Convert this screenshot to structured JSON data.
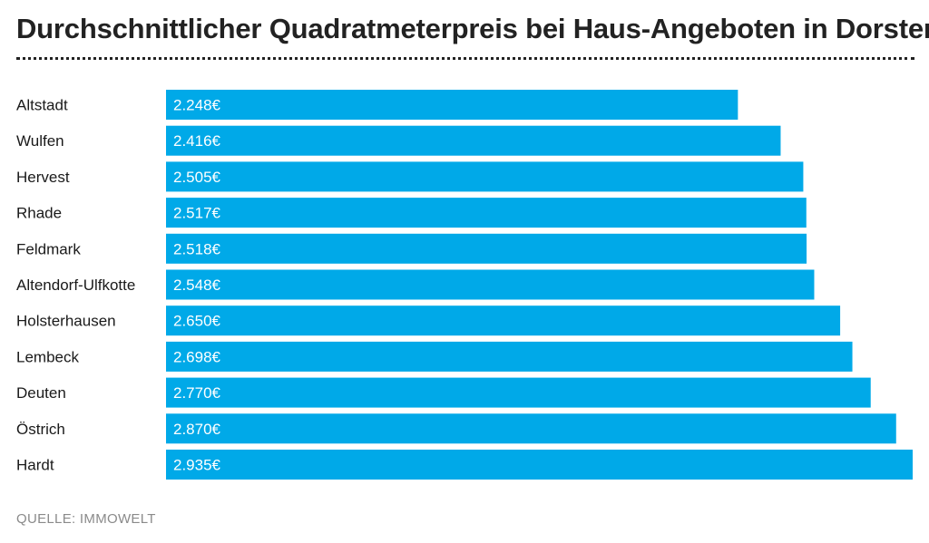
{
  "chart_data": {
    "type": "bar",
    "orientation": "horizontal",
    "title": "Durchschnittlicher Quadratmeterpreis bei Haus-Angeboten in Dorsten",
    "categories": [
      "Altstadt",
      "Wulfen",
      "Hervest",
      "Rhade",
      "Feldmark",
      "Altendorf-Ulfkotte",
      "Holsterhausen",
      "Lembeck",
      "Deuten",
      "Östrich",
      "Hardt"
    ],
    "values": [
      2248,
      2416,
      2505,
      2517,
      2518,
      2548,
      2650,
      2698,
      2770,
      2870,
      2935
    ],
    "value_labels": [
      "2.248€",
      "2.416€",
      "2.505€",
      "2.517€",
      "2.518€",
      "2.548€",
      "2.650€",
      "2.698€",
      "2.770€",
      "2.870€",
      "2.935€"
    ],
    "unit": "€",
    "xlim": [
      0,
      2935
    ],
    "grid": false,
    "legend": "none",
    "bar_color": "#00a9e8",
    "label_color": "#ffffff"
  },
  "source": "QUELLE: IMMOWELT"
}
